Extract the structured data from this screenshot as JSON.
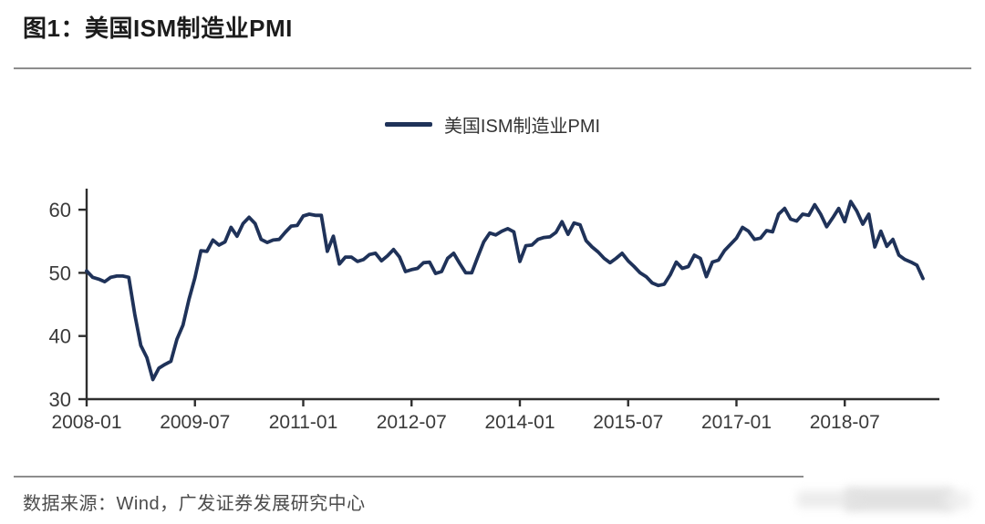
{
  "page": {
    "title": "图1：美国ISM制造业PMI",
    "source": "数据来源：Wind，广发证券发展研究中心"
  },
  "legend": {
    "label": "美国ISM制造业PMI",
    "swatch_color": "#1f3259"
  },
  "colors": {
    "line": "#1f3259",
    "axis": "#2e2e2e",
    "tick_text": "#3a3a3a",
    "divider": "#8d8d8d",
    "title_text": "#1c1c1c",
    "source_text": "#4b4b4b"
  },
  "chart_data": {
    "type": "line",
    "title": "美国ISM制造业PMI",
    "x_unit": "month",
    "x_start": "2008-01",
    "x_end": "2019-08",
    "x_tick_labels": [
      "2008-01",
      "2009-07",
      "2011-01",
      "2012-07",
      "2014-01",
      "2015-07",
      "2017-01",
      "2018-07"
    ],
    "x_tick_month_index": [
      0,
      18,
      36,
      54,
      72,
      90,
      108,
      126
    ],
    "y_ticks": [
      30,
      40,
      50,
      60
    ],
    "ylim": [
      30,
      63.5
    ],
    "grid": false,
    "legend_position": "top-center",
    "series": [
      {
        "name": "美国ISM制造业PMI",
        "frequency": "monthly",
        "values": [
          50.3,
          49.3,
          49.0,
          48.6,
          49.3,
          49.5,
          49.5,
          49.3,
          43.4,
          38.5,
          36.6,
          33.1,
          34.9,
          35.5,
          36.0,
          39.5,
          41.7,
          45.8,
          49.2,
          53.5,
          53.4,
          55.2,
          54.4,
          54.9,
          57.2,
          55.8,
          57.8,
          58.8,
          57.8,
          55.3,
          54.8,
          55.2,
          55.3,
          56.4,
          57.4,
          57.5,
          59.0,
          59.3,
          59.1,
          59.1,
          53.4,
          55.8,
          51.4,
          52.5,
          52.5,
          51.8,
          52.1,
          52.9,
          53.1,
          51.9,
          52.7,
          53.7,
          52.5,
          50.2,
          50.5,
          50.7,
          51.6,
          51.7,
          49.9,
          50.2,
          52.3,
          53.1,
          51.5,
          50.0,
          50.0,
          52.5,
          54.9,
          56.3,
          56.0,
          56.6,
          57.0,
          56.5,
          51.8,
          54.3,
          54.4,
          55.3,
          55.6,
          55.7,
          56.4,
          58.1,
          56.1,
          57.9,
          57.6,
          55.1,
          54.1,
          53.3,
          52.3,
          51.6,
          52.3,
          53.1,
          51.9,
          51.0,
          50.0,
          49.4,
          48.4,
          48.0,
          48.2,
          49.7,
          51.7,
          50.7,
          51.0,
          52.8,
          52.3,
          49.4,
          51.7,
          52.0,
          53.5,
          54.5,
          55.5,
          57.2,
          56.6,
          55.3,
          55.5,
          56.7,
          56.5,
          59.3,
          60.2,
          58.5,
          58.2,
          59.3,
          59.1,
          60.8,
          59.3,
          57.3,
          58.7,
          60.2,
          58.1,
          61.3,
          59.8,
          57.7,
          59.3,
          54.1,
          56.6,
          54.2,
          55.3,
          52.8,
          52.1,
          51.7,
          51.2,
          49.1
        ]
      }
    ]
  }
}
